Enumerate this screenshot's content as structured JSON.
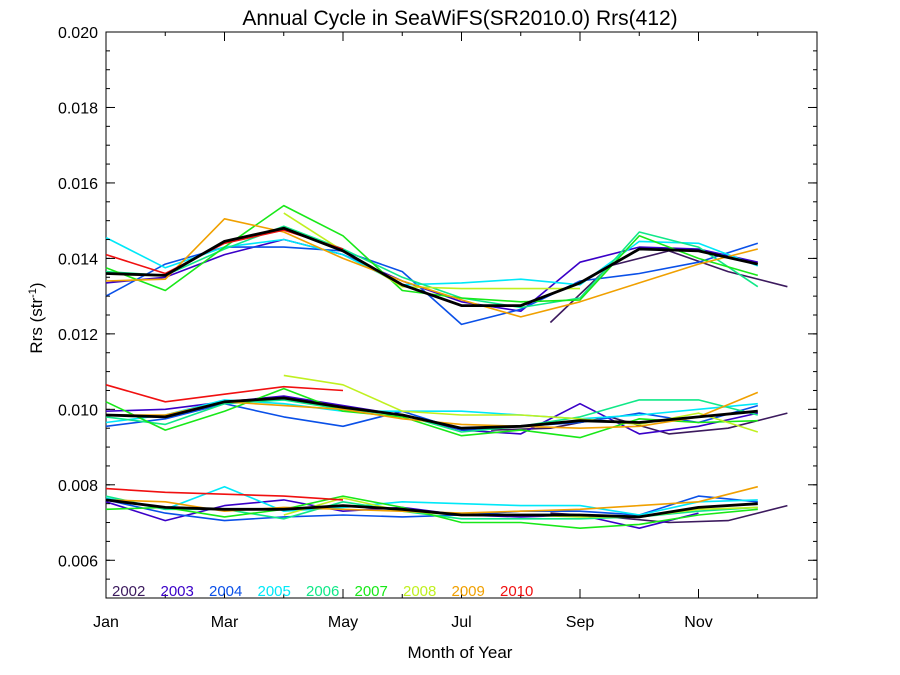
{
  "chart_data": {
    "type": "line",
    "title": "Annual Cycle in SeaWiFS(SR2010.0) Rrs(412)",
    "xlabel": "Month of Year",
    "ylabel": "Rrs (str",
    "ylabel_sup": "-1",
    "ylabel_end": ")",
    "xlim": [
      1,
      13
    ],
    "ylim": [
      0.005,
      0.02
    ],
    "x_ticks": [
      {
        "value": 1,
        "label": "Jan"
      },
      {
        "value": 3,
        "label": "Mar"
      },
      {
        "value": 5,
        "label": "May"
      },
      {
        "value": 7,
        "label": "Jul"
      },
      {
        "value": 9,
        "label": "Sep"
      },
      {
        "value": 11,
        "label": "Nov"
      }
    ],
    "y_ticks": [
      {
        "value": 0.006,
        "label": "0.006"
      },
      {
        "value": 0.008,
        "label": "0.008"
      },
      {
        "value": 0.01,
        "label": "0.010"
      },
      {
        "value": 0.012,
        "label": "0.012"
      },
      {
        "value": 0.014,
        "label": "0.014"
      },
      {
        "value": 0.016,
        "label": "0.016"
      },
      {
        "value": 0.018,
        "label": "0.018"
      },
      {
        "value": 0.02,
        "label": "0.020"
      }
    ],
    "grid": false,
    "legend_position": "bottom-left",
    "series": [
      {
        "name": "2002",
        "color": "#3c1a5e",
        "groups": [
          {
            "x": [
              8.5,
              9.5,
              10.5,
              11.5,
              12.5
            ],
            "y": [
              0.0123,
              0.0138,
              0.0142,
              0.01365,
              0.01325
            ]
          },
          {
            "x": [
              7.5,
              8.5,
              9.5,
              10.5,
              11.5,
              12.5
            ],
            "y": [
              0.00945,
              0.0095,
              0.0098,
              0.00935,
              0.0095,
              0.0099
            ]
          },
          {
            "x": [
              8.5,
              9.5,
              10.5,
              11.5,
              12.5
            ],
            "y": [
              0.00725,
              0.00715,
              0.007,
              0.00705,
              0.00745
            ]
          }
        ]
      },
      {
        "name": "2003",
        "color": "#3a00c8",
        "groups": [
          {
            "x": [
              1,
              2,
              3,
              4,
              5,
              6,
              7,
              8,
              9,
              10,
              11,
              12
            ],
            "y": [
              0.01335,
              0.0135,
              0.0141,
              0.0145,
              0.0141,
              0.0134,
              0.01285,
              0.0126,
              0.0139,
              0.0143,
              0.01425,
              0.0139
            ]
          },
          {
            "x": [
              1,
              2,
              3,
              4,
              5,
              6,
              7,
              8,
              9,
              10,
              11,
              12
            ],
            "y": [
              0.00995,
              0.01,
              0.0102,
              0.01035,
              0.0101,
              0.00985,
              0.00945,
              0.00935,
              0.01015,
              0.00935,
              0.00955,
              0.0099
            ]
          },
          {
            "x": [
              1,
              2,
              3,
              4,
              5,
              6,
              7,
              8,
              9,
              10,
              11
            ],
            "y": [
              0.00755,
              0.00705,
              0.00745,
              0.0076,
              0.0073,
              0.0074,
              0.0072,
              0.00715,
              0.0072,
              0.00685,
              0.00725
            ]
          }
        ]
      },
      {
        "name": "2004",
        "color": "#0a50e8",
        "groups": [
          {
            "x": [
              1,
              2,
              3,
              4,
              5,
              6,
              7,
              8,
              9,
              10,
              11,
              12
            ],
            "y": [
              0.013,
              0.01385,
              0.0143,
              0.0143,
              0.0142,
              0.01365,
              0.01225,
              0.01265,
              0.0134,
              0.0136,
              0.0139,
              0.0144
            ]
          },
          {
            "x": [
              1,
              2,
              3,
              4,
              5,
              6,
              7,
              8,
              9,
              10,
              11,
              12
            ],
            "y": [
              0.00955,
              0.00975,
              0.01015,
              0.0098,
              0.00955,
              0.00995,
              0.00945,
              0.00955,
              0.00965,
              0.0099,
              0.00965,
              0.0101
            ]
          },
          {
            "x": [
              1,
              2,
              3,
              4,
              5,
              6,
              7,
              8,
              9,
              10,
              11,
              12
            ],
            "y": [
              0.0076,
              0.00725,
              0.00705,
              0.00715,
              0.0072,
              0.00715,
              0.0072,
              0.0073,
              0.0073,
              0.0072,
              0.0077,
              0.00755
            ]
          }
        ]
      },
      {
        "name": "2005",
        "color": "#00e8f8",
        "groups": [
          {
            "x": [
              1,
              2,
              3,
              4,
              5,
              6,
              7,
              8,
              9,
              10,
              11,
              12
            ],
            "y": [
              0.01455,
              0.01375,
              0.0143,
              0.0145,
              0.0141,
              0.0133,
              0.01335,
              0.01345,
              0.0133,
              0.01445,
              0.0144,
              0.0138
            ]
          },
          {
            "x": [
              1,
              2,
              3,
              4,
              5,
              6,
              7,
              8,
              9,
              10,
              11,
              12
            ],
            "y": [
              0.00965,
              0.00985,
              0.01025,
              0.01015,
              0.00995,
              0.00995,
              0.00995,
              0.00985,
              0.00975,
              0.00985,
              0.01,
              0.01015
            ]
          },
          {
            "x": [
              1,
              2,
              3,
              4,
              5,
              6,
              7,
              8,
              9,
              10,
              11,
              12
            ],
            "y": [
              0.00765,
              0.00735,
              0.00795,
              0.0073,
              0.0074,
              0.00755,
              0.0075,
              0.00745,
              0.00745,
              0.0072,
              0.00755,
              0.0076
            ]
          }
        ]
      },
      {
        "name": "2006",
        "color": "#10e888",
        "groups": [
          {
            "x": [
              1,
              2,
              3,
              4,
              5,
              6,
              7,
              8,
              9,
              10,
              11,
              12
            ],
            "y": [
              0.01365,
              0.01355,
              0.01425,
              0.01485,
              0.01425,
              0.0135,
              0.01295,
              0.0127,
              0.01295,
              0.0147,
              0.0143,
              0.01325
            ]
          },
          {
            "x": [
              1,
              2,
              3,
              4,
              5,
              6,
              7,
              8,
              9,
              10,
              11,
              12
            ],
            "y": [
              0.0098,
              0.0096,
              0.01015,
              0.01025,
              0.01,
              0.00985,
              0.0094,
              0.00955,
              0.0098,
              0.01025,
              0.01025,
              0.00985
            ]
          },
          {
            "x": [
              1,
              2,
              3,
              4,
              5,
              6,
              7,
              8,
              9,
              10,
              11,
              12
            ],
            "y": [
              0.0077,
              0.00735,
              0.00735,
              0.0071,
              0.00755,
              0.0073,
              0.0071,
              0.0071,
              0.0071,
              0.00715,
              0.0073,
              0.0074
            ]
          }
        ]
      },
      {
        "name": "2007",
        "color": "#18e818",
        "groups": [
          {
            "x": [
              1,
              2,
              3,
              4,
              5,
              6,
              7,
              8,
              9,
              10,
              11,
              12
            ],
            "y": [
              0.01375,
              0.01315,
              0.0143,
              0.0154,
              0.0146,
              0.01315,
              0.01295,
              0.01285,
              0.0129,
              0.0146,
              0.014,
              0.01355
            ]
          },
          {
            "x": [
              1,
              2,
              3,
              4,
              5,
              6,
              7,
              8,
              9,
              10,
              11,
              12
            ],
            "y": [
              0.0102,
              0.00945,
              0.00995,
              0.01055,
              0.00995,
              0.0098,
              0.0093,
              0.00945,
              0.00925,
              0.00975,
              0.00965,
              0.0097
            ]
          },
          {
            "x": [
              1,
              2,
              3,
              4,
              5,
              6,
              7,
              8,
              9,
              10,
              11,
              12
            ],
            "y": [
              0.00735,
              0.0074,
              0.00715,
              0.00735,
              0.0077,
              0.0074,
              0.007,
              0.007,
              0.00685,
              0.00695,
              0.0072,
              0.00735
            ]
          }
        ]
      },
      {
        "name": "2008",
        "color": "#c0f020",
        "groups": [
          {
            "x": [
              4,
              5,
              6,
              7,
              8,
              9
            ],
            "y": [
              0.0152,
              0.0142,
              0.01325,
              0.0132,
              0.0132,
              0.0132
            ]
          },
          {
            "x": [
              4,
              5,
              6,
              7,
              8,
              9,
              10,
              11,
              12
            ],
            "y": [
              0.0109,
              0.01065,
              0.00995,
              0.00985,
              0.00985,
              0.00975,
              0.0096,
              0.0099,
              0.0094
            ]
          },
          {
            "x": [
              4,
              5,
              6,
              7,
              8,
              9,
              10,
              11,
              12
            ],
            "y": [
              0.0072,
              0.00765,
              0.0073,
              0.0072,
              0.0072,
              0.00715,
              0.00715,
              0.00735,
              0.0074
            ]
          }
        ]
      },
      {
        "name": "2009",
        "color": "#f0a000",
        "groups": [
          {
            "x": [
              1,
              2,
              3,
              4,
              5,
              6,
              7,
              8,
              9,
              10,
              11,
              12
            ],
            "y": [
              0.0134,
              0.01345,
              0.01505,
              0.0147,
              0.014,
              0.0134,
              0.0129,
              0.01245,
              0.01285,
              0.01335,
              0.01385,
              0.01425
            ]
          },
          {
            "x": [
              1,
              2,
              3,
              4,
              5,
              6,
              7,
              8,
              9,
              10,
              11,
              12
            ],
            "y": [
              0.00985,
              0.00985,
              0.0102,
              0.0101,
              0.01,
              0.00975,
              0.0096,
              0.00955,
              0.0095,
              0.00955,
              0.0098,
              0.01045
            ]
          },
          {
            "x": [
              1,
              2,
              3,
              4,
              5,
              6,
              7,
              8,
              9,
              10,
              11,
              12
            ],
            "y": [
              0.0076,
              0.00755,
              0.0073,
              0.0074,
              0.00735,
              0.0073,
              0.00725,
              0.0073,
              0.00735,
              0.00745,
              0.00755,
              0.00795
            ]
          }
        ]
      },
      {
        "name": "2010",
        "color": "#f01010",
        "groups": [
          {
            "x": [
              1,
              2,
              3,
              4,
              5
            ],
            "y": [
              0.0141,
              0.0136,
              0.0144,
              0.01475,
              0.01425
            ]
          },
          {
            "x": [
              1,
              2,
              3,
              4,
              5
            ],
            "y": [
              0.01065,
              0.0102,
              0.0104,
              0.0106,
              0.0105
            ]
          },
          {
            "x": [
              1,
              2,
              3,
              4,
              5
            ],
            "y": [
              0.0079,
              0.0078,
              0.00775,
              0.0077,
              0.0076
            ]
          }
        ]
      },
      {
        "name": "",
        "color": "#000000",
        "width": 2.8,
        "groups": [
          {
            "x": [
              1,
              2,
              3,
              4,
              5,
              6,
              7,
              8,
              9,
              10,
              11,
              12
            ],
            "y": [
              0.0136,
              0.01355,
              0.01445,
              0.0148,
              0.0142,
              0.0133,
              0.01275,
              0.01275,
              0.01335,
              0.01425,
              0.0142,
              0.01385
            ]
          },
          {
            "x": [
              1,
              2,
              3,
              4,
              5,
              6,
              7,
              8,
              9,
              10,
              11,
              12
            ],
            "y": [
              0.00985,
              0.0098,
              0.0102,
              0.0103,
              0.01005,
              0.00985,
              0.0095,
              0.00955,
              0.0097,
              0.00965,
              0.0098,
              0.00995
            ]
          },
          {
            "x": [
              1,
              2,
              3,
              4,
              5,
              6,
              7,
              8,
              9,
              10,
              11,
              12
            ],
            "y": [
              0.0076,
              0.0074,
              0.00735,
              0.00735,
              0.00745,
              0.00735,
              0.0072,
              0.0072,
              0.0072,
              0.00715,
              0.0074,
              0.0075
            ]
          }
        ]
      }
    ]
  }
}
